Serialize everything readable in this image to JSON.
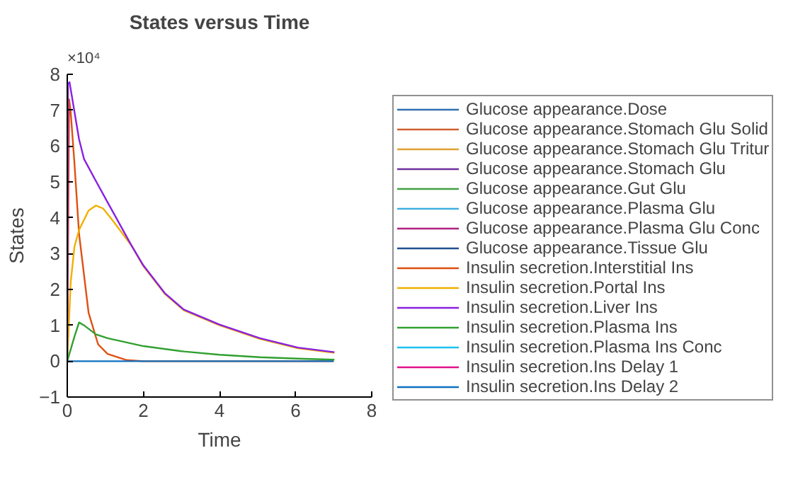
{
  "chart_data": {
    "type": "line",
    "title": "States versus Time",
    "xlabel": "Time",
    "ylabel": "States",
    "annotations": [
      "×10⁴"
    ],
    "xlim": [
      0,
      8
    ],
    "xticks": [
      0,
      2,
      4,
      6,
      8
    ],
    "ylim": [
      -1,
      8
    ],
    "yticks": [
      -1,
      0,
      1,
      2,
      3,
      4,
      5,
      6,
      7,
      8
    ],
    "grid": false,
    "legend": "right",
    "marker": "none",
    "line_style": "solid",
    "series": [
      {
        "name": "Glucose appearance.Dose",
        "color": "#3070b0",
        "values": [
          null
        ]
      },
      {
        "name": "Glucose appearance.Stomach Glu Solid",
        "color": "#d06030",
        "values": [
          null
        ]
      },
      {
        "name": "Glucose appearance.Stomach Glu Tritur",
        "color": "#e0a030",
        "values": [
          null
        ]
      },
      {
        "name": "Glucose appearance.Stomach Glu",
        "color": "#7030a0",
        "values": [
          null
        ]
      },
      {
        "name": "Glucose appearance.Gut Glu",
        "color": "#40a040",
        "values": [
          null
        ]
      },
      {
        "name": "Glucose appearance.Plasma Glu",
        "color": "#40b0e0",
        "values": [
          null
        ]
      },
      {
        "name": "Glucose appearance.Plasma Glu Conc",
        "color": "#b02080",
        "values": [
          null
        ]
      },
      {
        "name": "Glucose appearance.Tissue Glu",
        "color": "#205090",
        "values": [
          null
        ]
      },
      {
        "name": "Insulin secretion.Interstitial Ins",
        "color": "#e05010",
        "x": [
          0,
          0.05,
          0.09,
          0.19,
          0.31,
          0.56,
          0.81,
          1.06,
          1.56,
          2,
          7
        ],
        "values": [
          0,
          7.3,
          6.95,
          5.5,
          3.55,
          1.35,
          0.47,
          0.2,
          0.03,
          0,
          0
        ]
      },
      {
        "name": "Insulin secretion.Portal Ins",
        "color": "#f0b000",
        "x": [
          0,
          0.09,
          0.19,
          0.31,
          0.56,
          0.75,
          0.94,
          1.19,
          1.69,
          2,
          2.56,
          3.06,
          4,
          5.06,
          6.06,
          7.02
        ],
        "values": [
          0,
          2.2,
          3.2,
          3.66,
          4.2,
          4.34,
          4.26,
          3.93,
          3.22,
          2.65,
          1.88,
          1.42,
          1.0,
          0.62,
          0.36,
          0.23
        ]
      },
      {
        "name": "Insulin secretion.Liver Ins",
        "color": "#8a20e0",
        "x": [
          0,
          0.02,
          0.06,
          0.19,
          0.31,
          0.44,
          0.75,
          1.06,
          1.69,
          2,
          2.56,
          3.06,
          4,
          5.06,
          6.06,
          7.02
        ],
        "values": [
          0,
          7.75,
          7.78,
          6.95,
          6.19,
          5.64,
          5.03,
          4.43,
          3.22,
          2.67,
          1.9,
          1.44,
          1.02,
          0.64,
          0.38,
          0.25
        ]
      },
      {
        "name": "Insulin secretion.Plasma Ins",
        "color": "#30a030",
        "x": [
          0,
          0.19,
          0.31,
          0.44,
          0.75,
          1.06,
          2,
          3.06,
          4,
          5.06,
          6.06,
          7.02
        ],
        "values": [
          0,
          0.69,
          1.08,
          1.0,
          0.75,
          0.64,
          0.42,
          0.27,
          0.18,
          0.11,
          0.07,
          0.04
        ]
      },
      {
        "name": "Insulin secretion.Plasma Ins Conc",
        "color": "#20c0f0",
        "values": [
          null
        ]
      },
      {
        "name": "Insulin secretion.Ins Delay 1",
        "color": "#e0108a",
        "values": [
          null
        ]
      },
      {
        "name": "Insulin secretion.Ins Delay 2",
        "color": "#1070c0",
        "x": [
          0,
          7
        ],
        "values": [
          0,
          0
        ]
      }
    ]
  }
}
